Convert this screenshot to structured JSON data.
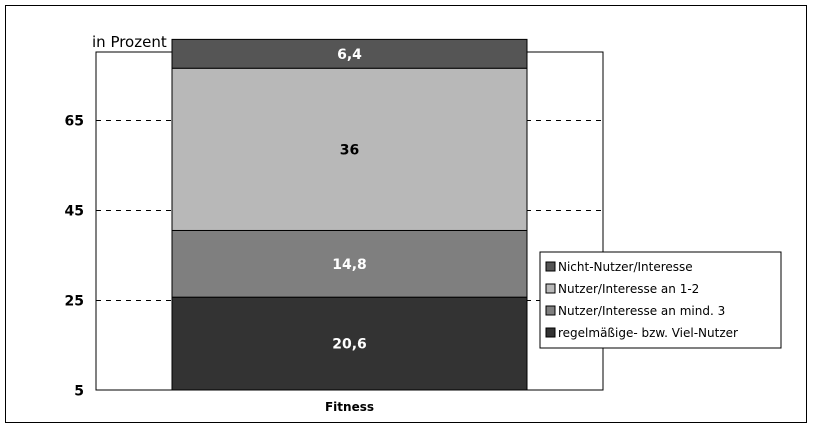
{
  "chart_data": {
    "type": "bar",
    "stacked": true,
    "unit_label": "in Prozent",
    "categories": [
      "Fitness"
    ],
    "ylim": [
      5,
      80
    ],
    "yticks": [
      5,
      25,
      45,
      65
    ],
    "ytick_labels": [
      "5",
      "25",
      "45",
      "65"
    ],
    "grid": "dashed",
    "legend_position": "right",
    "series": [
      {
        "name": "regelmäßige- bzw. Viel-Nutzer",
        "values": [
          20.6
        ],
        "label": "20,6",
        "color": "#333333",
        "label_color": "#ffffff"
      },
      {
        "name": "Nutzer/Interesse an mind. 3",
        "values": [
          14.8
        ],
        "label": "14,8",
        "color": "#7f7f7f",
        "label_color": "#ffffff"
      },
      {
        "name": "Nutzer/Interesse an 1-2",
        "values": [
          36
        ],
        "label": "36",
        "color": "#b8b8b8",
        "label_color": "#000000"
      },
      {
        "name": "Nicht-Nutzer/Interesse",
        "values": [
          6.4
        ],
        "label": "6,4",
        "color": "#555555",
        "label_color": "#ffffff"
      }
    ],
    "legend_order": [
      3,
      2,
      1,
      0
    ]
  }
}
